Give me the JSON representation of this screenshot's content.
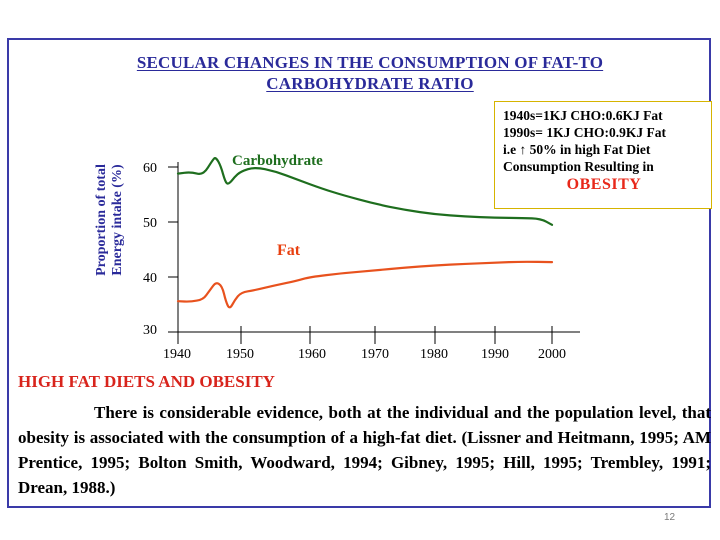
{
  "slide": {
    "title_line1": "SECULAR CHANGES IN THE CONSUMPTION OF FAT-TO",
    "title_line2": "CARBOHYDRATE RATIO",
    "page_number": "12"
  },
  "annotation": {
    "line1": "1940s=1KJ CHO:0.6KJ Fat",
    "line2": " 1990s= 1KJ CHO:0.9KJ Fat",
    "line3": "i.e ↑ 50% in high Fat Diet",
    "line4": "Consumption Resulting in",
    "line5": "OBESITY"
  },
  "section": {
    "heading": "HIGH FAT DIETS AND OBESITY",
    "body": "There is considerable evidence, both at the individual and the population level, that obesity is associated with the consumption of a high-fat diet. (Lissner and Heitmann, 1995; AM Prentice, 1995; Bolton Smith, Woodward, 1994; Gibney, 1995; Hill, 1995; Trembley, 1991; Drean, 1988.)"
  },
  "colors": {
    "carbohydrate": "#1e6e1e",
    "fat": "#e8521e",
    "carb_label": "#1e6e1e",
    "fat_label": "#e84010"
  },
  "chart_data": {
    "type": "line",
    "title": "",
    "ylabel_line1": "Proportion of total",
    "ylabel_line2": "Energy intake (%)",
    "xlabel": "",
    "xlim": [
      1940,
      2000
    ],
    "ylim": [
      30,
      60
    ],
    "x_ticks": [
      "1940",
      "1950",
      "1960",
      "1970",
      "1980",
      "1990",
      "2000"
    ],
    "y_ticks": [
      "60",
      "50",
      "40",
      "30"
    ],
    "series": [
      {
        "name": "Carbohydrate",
        "x": [
          1940,
          1942,
          1944,
          1945.5,
          1946,
          1946.8,
          1947.5,
          1948,
          1949,
          1950,
          1952,
          1955,
          1958,
          1962,
          1965,
          1970,
          1975,
          1980,
          1985,
          1990,
          1995,
          1998,
          2000
        ],
        "y": [
          58.8,
          59.1,
          58.5,
          61.3,
          61.8,
          60.2,
          57.3,
          56.8,
          58.2,
          59.2,
          60.0,
          59.2,
          57.8,
          56.0,
          54.9,
          53.3,
          52.2,
          51.4,
          51.0,
          50.8,
          50.7,
          50.6,
          49.5
        ]
      },
      {
        "name": "Fat",
        "x": [
          1940,
          1942,
          1944,
          1945,
          1946,
          1947,
          1947.6,
          1948.2,
          1949,
          1950,
          1952,
          1955,
          1958,
          1960,
          1965,
          1970,
          1975,
          1980,
          1985,
          1990,
          1995,
          2000
        ],
        "y": [
          35.6,
          35.5,
          35.9,
          37.5,
          39.1,
          38.4,
          35.5,
          34.1,
          35.8,
          37.2,
          37.6,
          38.5,
          39.3,
          40.0,
          40.7,
          41.2,
          41.7,
          42.1,
          42.4,
          42.6,
          42.8,
          42.7
        ]
      }
    ],
    "series_labels": [
      "Carbohydrate",
      "Fat"
    ],
    "grid": false,
    "legend": "inline"
  }
}
